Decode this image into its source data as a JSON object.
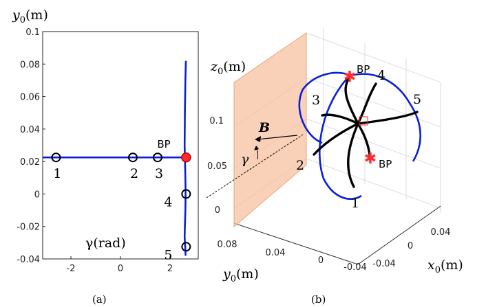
{
  "chart_data": [
    {
      "panel": "(a)",
      "type": "line",
      "ylabel": "y0(m)",
      "ylabel_base": "y",
      "ylabel_sub": "0",
      "ylabel_unit": "(m)",
      "xlabel": "γ(rad)",
      "xlim": [
        -3.14,
        3.14
      ],
      "ylim": [
        -0.04,
        0.1
      ],
      "x_ticks": [
        "-2",
        "0",
        "2"
      ],
      "y_ticks": [
        "-0.04",
        "-0.02",
        "0",
        "0.02",
        "0.04",
        "0.06",
        "0.08",
        "0.1"
      ],
      "series_color": "#0a1fd8",
      "series": [
        {
          "x": [
            -3.14,
            2.68
          ],
          "y": [
            0.0225,
            0.0225
          ]
        },
        {
          "x": [
            2.64,
            2.62,
            2.6,
            2.59,
            2.6,
            2.62,
            2.63,
            2.62,
            2.6,
            2.59,
            2.6,
            2.62,
            2.63
          ],
          "y": [
            0.082,
            0.07,
            0.05,
            0.03,
            0.0225,
            0.01,
            0.0,
            -0.01,
            -0.02,
            -0.026,
            -0.03,
            -0.034,
            -0.038
          ]
        }
      ],
      "markers": [
        {
          "label": "1",
          "x": -2.6,
          "y": 0.0225
        },
        {
          "label": "2",
          "x": 0.5,
          "y": 0.0225
        },
        {
          "label": "3",
          "x": 1.5,
          "y": 0.0225
        },
        {
          "label": "4",
          "x": 2.65,
          "y": 0.0
        },
        {
          "label": "5",
          "x": 2.65,
          "y": -0.0325
        }
      ],
      "bp_point": {
        "label": "BP",
        "x": 2.65,
        "y": 0.0225,
        "color": "#ff2a2a"
      }
    },
    {
      "panel": "(b)",
      "type": "line",
      "zlabel": "z0(m)",
      "ylabel": "y0(m)",
      "xlabel": "x0(m)",
      "z_ticks": [
        "0",
        "0.05",
        "0.1"
      ],
      "y_ticks": [
        "0.08",
        "0.04",
        "0",
        "-0.04"
      ],
      "x_ticks": [
        "-0.04",
        "0",
        "0.04"
      ],
      "plane_color": "#f7c2a0",
      "vector_label": "B",
      "angle_label": "γ",
      "branch_labels": [
        "1",
        "2",
        "3",
        "4",
        "5"
      ],
      "bp_labels": [
        "BP",
        "BP"
      ],
      "bp_color": "#ff2a2a",
      "curve_colors": {
        "loop": "#0a1fd8",
        "branches": "#000000"
      }
    }
  ]
}
